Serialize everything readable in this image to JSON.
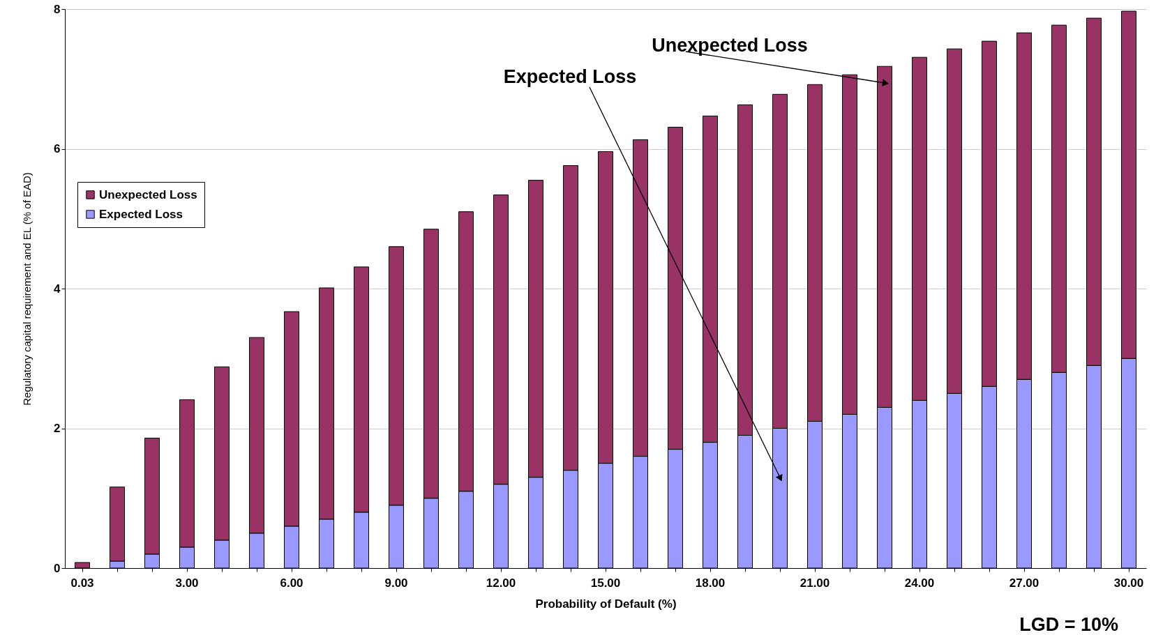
{
  "chart_data": {
    "type": "bar",
    "stacked": true,
    "categories": [
      "0.03",
      null,
      null,
      "3.00",
      null,
      null,
      "6.00",
      null,
      null,
      "9.00",
      null,
      null,
      "12.00",
      null,
      null,
      "15.00",
      null,
      null,
      "18.00",
      null,
      null,
      "21.00",
      null,
      null,
      "24.00",
      null,
      null,
      "27.00",
      null,
      null,
      "30.00"
    ],
    "xlabel": "Probability of Default (%)",
    "ylabel": "Regulatory capital requirement and EL (% of EAD)",
    "series": [
      {
        "name": "Expected Loss",
        "color": "#9999ff",
        "values": [
          0,
          0.1,
          0.2,
          0.3,
          0.4,
          0.5,
          0.6,
          0.7,
          0.8,
          0.9,
          1.0,
          1.1,
          1.2,
          1.3,
          1.4,
          1.5,
          1.6,
          1.7,
          1.8,
          1.9,
          2.0,
          2.1,
          2.2,
          2.3,
          2.4,
          2.5,
          2.6,
          2.7,
          2.8,
          2.9,
          3.0
        ]
      },
      {
        "name": "Unexpected Loss",
        "color": "#993366",
        "values": [
          0.08,
          1.06,
          1.66,
          2.11,
          2.48,
          2.8,
          3.07,
          3.31,
          3.51,
          3.7,
          3.85,
          4.0,
          4.14,
          4.25,
          4.36,
          4.46,
          4.53,
          4.61,
          4.67,
          4.73,
          4.78,
          4.82,
          4.86,
          4.88,
          4.91,
          4.93,
          4.94,
          4.96,
          4.97,
          4.97,
          4.97
        ]
      }
    ],
    "ylim": [
      0,
      8
    ],
    "yticks": [
      0,
      2,
      4,
      6,
      8
    ],
    "grid": "y",
    "legend": "left",
    "annotations": [
      "Unexpected Loss",
      "Expected Loss",
      "LGD = 10%"
    ]
  }
}
